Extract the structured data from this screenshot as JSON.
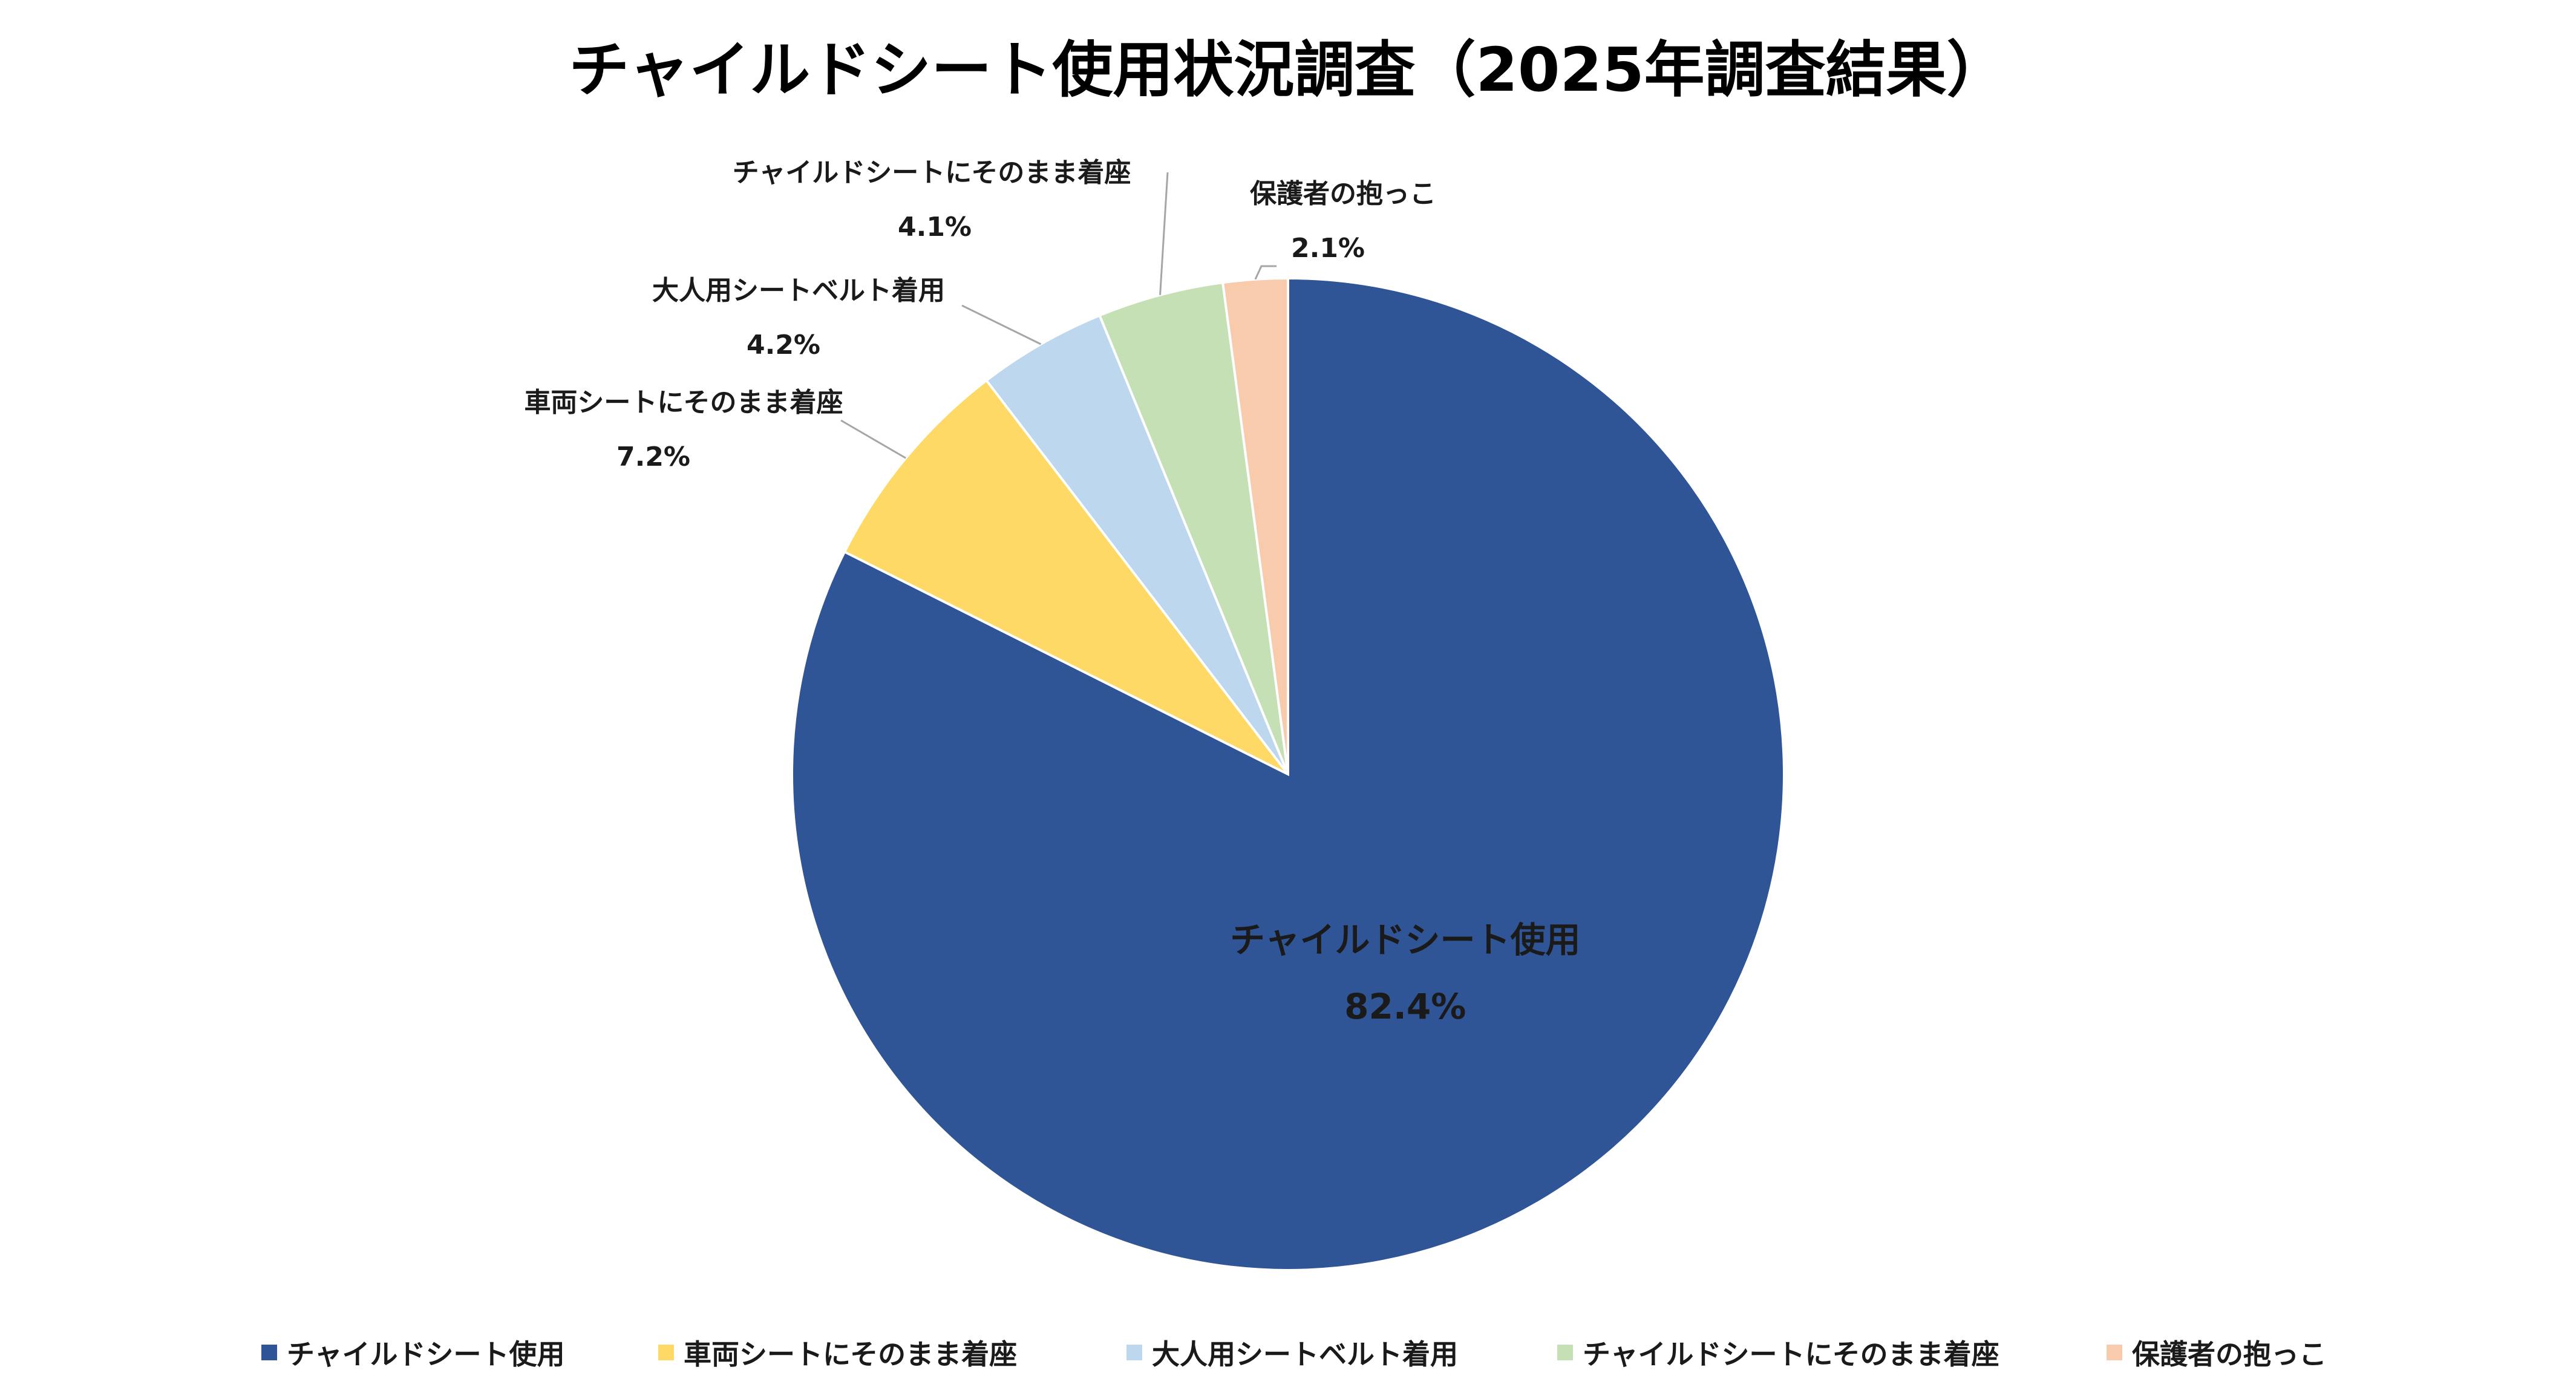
{
  "chart_data": {
    "type": "pie",
    "title": "チャイルドシート使用状況調査（2025年調査結果）",
    "slices": [
      {
        "label": "チャイルドシート使用",
        "value": 82.4,
        "value_label": "82.4%",
        "color": "#2F5597"
      },
      {
        "label": "車両シートにそのまま着座",
        "value": 7.2,
        "value_label": "7.2%",
        "color": "#FFD966"
      },
      {
        "label": "大人用シートベルト着用",
        "value": 4.2,
        "value_label": "4.2%",
        "color": "#BDD7EE"
      },
      {
        "label": "チャイルドシートにそのまま着座",
        "value": 4.1,
        "value_label": "4.1%",
        "color": "#C5E0B4"
      },
      {
        "label": "保護者の抱っこ",
        "value": 2.1,
        "value_label": "2.1%",
        "color": "#F8CBAD"
      }
    ],
    "start_angle": "12 o'clock",
    "direction": "clockwise",
    "legend_position": "bottom"
  }
}
